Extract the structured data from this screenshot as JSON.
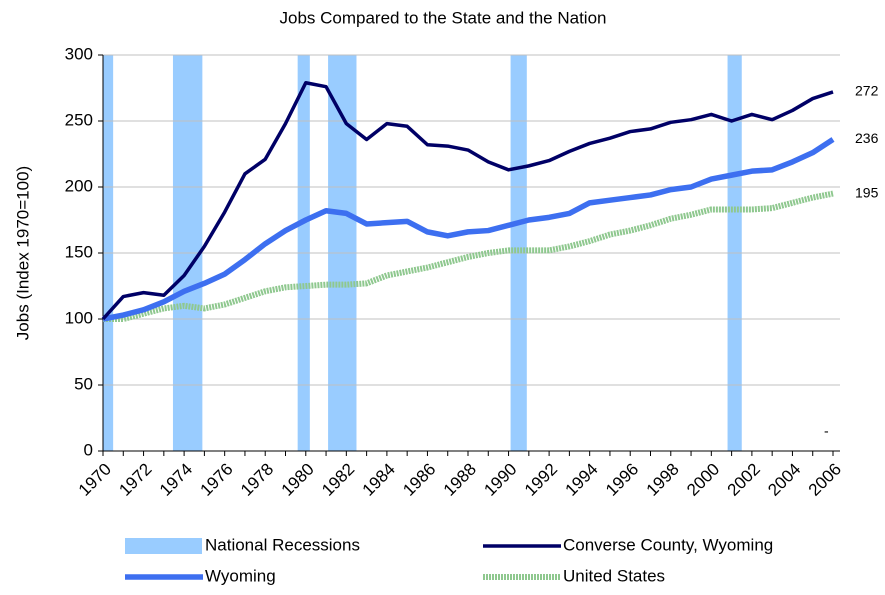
{
  "chart_data": {
    "type": "line",
    "title": "Jobs Compared to the State and the Nation",
    "y_label": "Jobs (Index 1970=100)",
    "x": [
      1970,
      1971,
      1972,
      1973,
      1974,
      1975,
      1976,
      1977,
      1978,
      1979,
      1980,
      1981,
      1982,
      1983,
      1984,
      1985,
      1986,
      1987,
      1988,
      1989,
      1990,
      1991,
      1992,
      1993,
      1994,
      1995,
      1996,
      1997,
      1998,
      1999,
      2000,
      2001,
      2002,
      2003,
      2004,
      2005,
      2006
    ],
    "xlim": [
      1970,
      2006
    ],
    "xticks": [
      1970,
      1972,
      1974,
      1976,
      1978,
      1980,
      1982,
      1984,
      1986,
      1988,
      1990,
      1992,
      1994,
      1996,
      1998,
      2000,
      2002,
      2004,
      2006
    ],
    "ylim": [
      0,
      300
    ],
    "yticks": [
      0,
      50,
      100,
      150,
      200,
      250,
      300
    ],
    "grid": true,
    "recession_name": "National Recessions",
    "recession_color": "#99ccff",
    "recessions": [
      [
        1970,
        1970.5
      ],
      [
        1973.45,
        1974.9
      ],
      [
        1979.6,
        1980.2
      ],
      [
        1981.1,
        1982.5
      ],
      [
        1990.1,
        1990.9
      ],
      [
        2000.8,
        2001.5
      ]
    ],
    "series": [
      {
        "name": "Converse County, Wyoming",
        "color": "#000066",
        "width": 3.5,
        "values": [
          100,
          117,
          120,
          118,
          133,
          155,
          181,
          210,
          221,
          248,
          279,
          276,
          248,
          236,
          248,
          246,
          232,
          231,
          228,
          219,
          213,
          216,
          220,
          227,
          233,
          237,
          242,
          244,
          249,
          251,
          255,
          250,
          255,
          251,
          258,
          267,
          272
        ],
        "value_labels": [
          "272"
        ]
      },
      {
        "name": "Wyoming",
        "color": "#3d6ff0",
        "width": 5.5,
        "values": [
          100,
          103,
          107,
          113,
          121,
          127,
          134,
          145,
          157,
          167,
          175,
          182,
          180,
          172,
          173,
          174,
          166,
          163,
          166,
          167,
          171,
          175,
          177,
          180,
          188,
          190,
          192,
          194,
          198,
          200,
          206,
          209,
          212,
          213,
          219,
          226,
          236
        ],
        "value_labels": [
          "236"
        ]
      },
      {
        "name": "United States",
        "color": "#8fc88f",
        "width": 6,
        "values": [
          100,
          100,
          104,
          108,
          110,
          108,
          111,
          116,
          121,
          124,
          125,
          126,
          126,
          127,
          133,
          136,
          139,
          143,
          147,
          150,
          152,
          152,
          152,
          155,
          159,
          164,
          167,
          171,
          176,
          179,
          183,
          183,
          183,
          184,
          188,
          192,
          195
        ],
        "value_labels": [
          "195"
        ]
      }
    ],
    "annotation": "-"
  }
}
